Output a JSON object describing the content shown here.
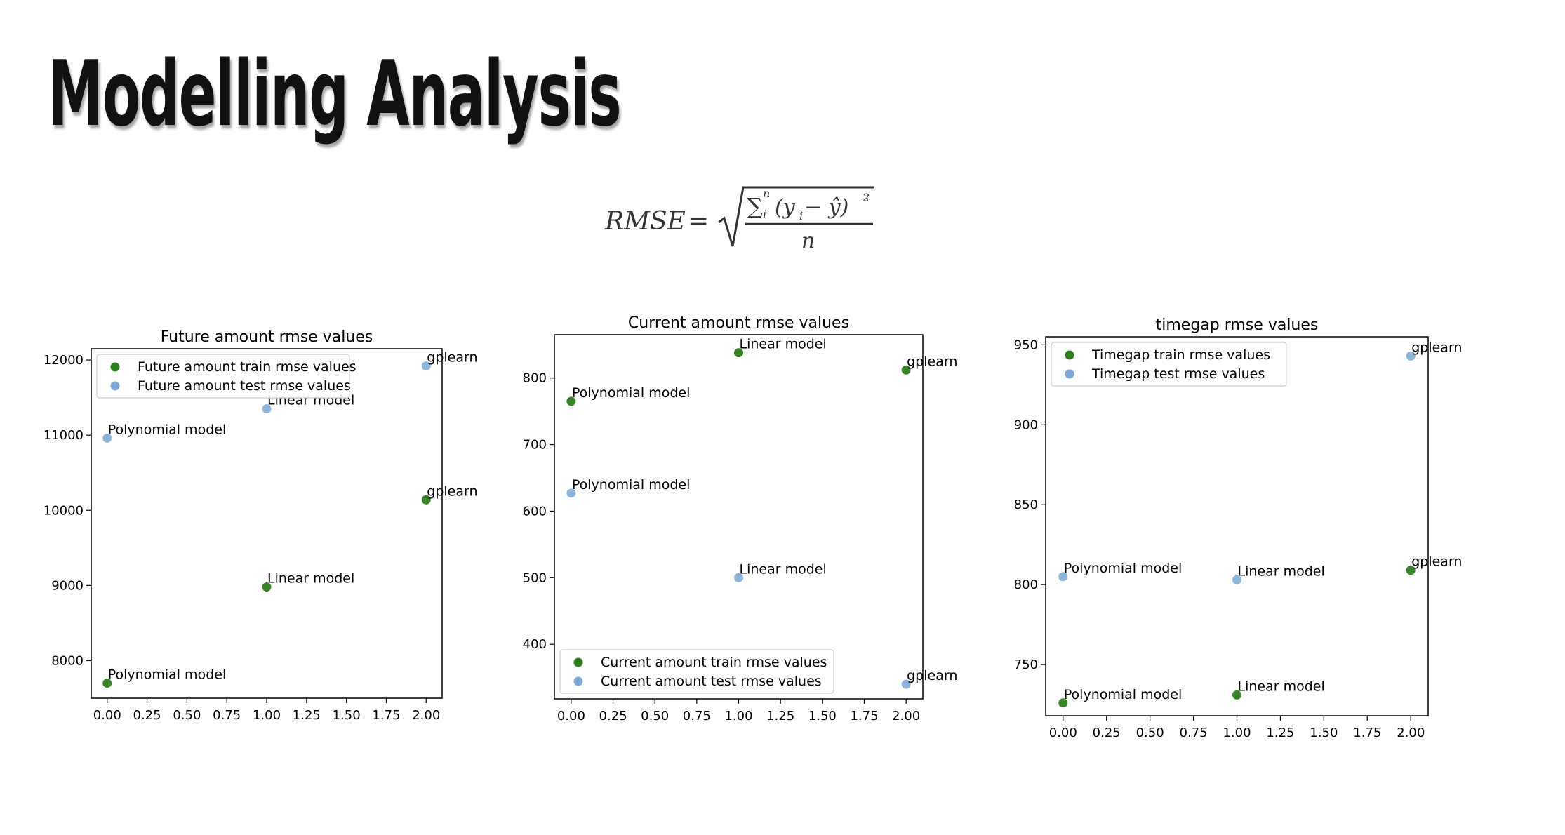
{
  "slide": {
    "title": "Modelling Analysis"
  },
  "formula": {
    "lhs": "RMSE",
    "equals": "=",
    "sum": "∑",
    "sup": "n",
    "sub": "i",
    "numerator_body": "(y",
    "numerator_sub": "i",
    "numerator_rest": " − ŷ)",
    "power": "2",
    "denominator": "n"
  },
  "colors": {
    "train": "#2e7d1e",
    "test": "#7ba7d2"
  },
  "chart_data": [
    {
      "type": "scatter",
      "title": "Future amount rmse values",
      "xlim": [
        -0.1,
        2.1
      ],
      "ylim": [
        7500,
        12150
      ],
      "xticks": [
        0,
        0.25,
        0.5,
        0.75,
        1.0,
        1.25,
        1.5,
        1.75,
        2.0
      ],
      "xtick_labels": [
        "0.00",
        "0.25",
        "0.50",
        "0.75",
        "1.00",
        "1.25",
        "1.50",
        "1.75",
        "2.00"
      ],
      "yticks": [
        8000,
        9000,
        10000,
        11000,
        12000
      ],
      "ytick_labels": [
        "8000",
        "9000",
        "10000",
        "11000",
        "12000"
      ],
      "legend_position": "top-left",
      "series": [
        {
          "name": "Future amount train rmse values",
          "color": "#2e7d1e",
          "x": [
            0,
            1,
            2
          ],
          "y": [
            7700,
            8980,
            10140
          ]
        },
        {
          "name": "Future amount test rmse values",
          "color": "#7ba7d2",
          "x": [
            0,
            1,
            2
          ],
          "y": [
            10960,
            11350,
            11920
          ]
        }
      ],
      "annotations": [
        {
          "text": "Polynomial model",
          "x": 0,
          "y": 7700
        },
        {
          "text": "Linear model",
          "x": 1,
          "y": 8980
        },
        {
          "text": "gplearn",
          "x": 2,
          "y": 10140
        },
        {
          "text": "Polynomial model",
          "x": 0,
          "y": 10960
        },
        {
          "text": "Linear model",
          "x": 1,
          "y": 11350
        },
        {
          "text": "gplearn",
          "x": 2,
          "y": 11920
        }
      ]
    },
    {
      "type": "scatter",
      "title": "Current amount rmse values",
      "xlim": [
        -0.1,
        2.1
      ],
      "ylim": [
        318,
        865
      ],
      "xticks": [
        0,
        0.25,
        0.5,
        0.75,
        1.0,
        1.25,
        1.5,
        1.75,
        2.0
      ],
      "xtick_labels": [
        "0.00",
        "0.25",
        "0.50",
        "0.75",
        "1.00",
        "1.25",
        "1.50",
        "1.75",
        "2.00"
      ],
      "yticks": [
        400,
        500,
        600,
        700,
        800
      ],
      "ytick_labels": [
        "400",
        "500",
        "600",
        "700",
        "800"
      ],
      "legend_position": "bottom-left",
      "series": [
        {
          "name": "Current amount train rmse values",
          "color": "#2e7d1e",
          "x": [
            0,
            1,
            2
          ],
          "y": [
            765,
            838,
            812
          ]
        },
        {
          "name": "Current amount test rmse values",
          "color": "#7ba7d2",
          "x": [
            0,
            1,
            2
          ],
          "y": [
            627,
            500,
            340
          ]
        }
      ],
      "annotations": [
        {
          "text": "Polynomial model",
          "x": 0,
          "y": 765
        },
        {
          "text": "Linear model",
          "x": 1,
          "y": 838
        },
        {
          "text": "gplearn",
          "x": 2,
          "y": 812
        },
        {
          "text": "Polynomial model",
          "x": 0,
          "y": 627
        },
        {
          "text": "Linear model",
          "x": 1,
          "y": 500
        },
        {
          "text": "gplearn",
          "x": 2,
          "y": 340
        }
      ]
    },
    {
      "type": "scatter",
      "title": "timegap rmse values",
      "xlim": [
        -0.1,
        2.1
      ],
      "ylim": [
        718,
        955
      ],
      "xticks": [
        0,
        0.25,
        0.5,
        0.75,
        1.0,
        1.25,
        1.5,
        1.75,
        2.0
      ],
      "xtick_labels": [
        "0.00",
        "0.25",
        "0.50",
        "0.75",
        "1.00",
        "1.25",
        "1.50",
        "1.75",
        "2.00"
      ],
      "yticks": [
        750,
        800,
        850,
        900,
        950
      ],
      "ytick_labels": [
        "750",
        "800",
        "850",
        "900",
        "950"
      ],
      "legend_position": "top-left",
      "series": [
        {
          "name": "Timegap train rmse values",
          "color": "#2e7d1e",
          "x": [
            0,
            1,
            2
          ],
          "y": [
            726,
            731,
            809
          ]
        },
        {
          "name": "Timegap test rmse values",
          "color": "#7ba7d2",
          "x": [
            0,
            1,
            2
          ],
          "y": [
            805,
            803,
            943
          ]
        }
      ],
      "annotations": [
        {
          "text": "Polynomial model",
          "x": 0,
          "y": 726
        },
        {
          "text": "Linear model",
          "x": 1,
          "y": 731
        },
        {
          "text": "gplearn",
          "x": 2,
          "y": 809
        },
        {
          "text": "Polynomial model",
          "x": 0,
          "y": 805
        },
        {
          "text": "Linear model",
          "x": 1,
          "y": 803
        },
        {
          "text": "gplearn",
          "x": 2,
          "y": 943
        }
      ]
    }
  ]
}
